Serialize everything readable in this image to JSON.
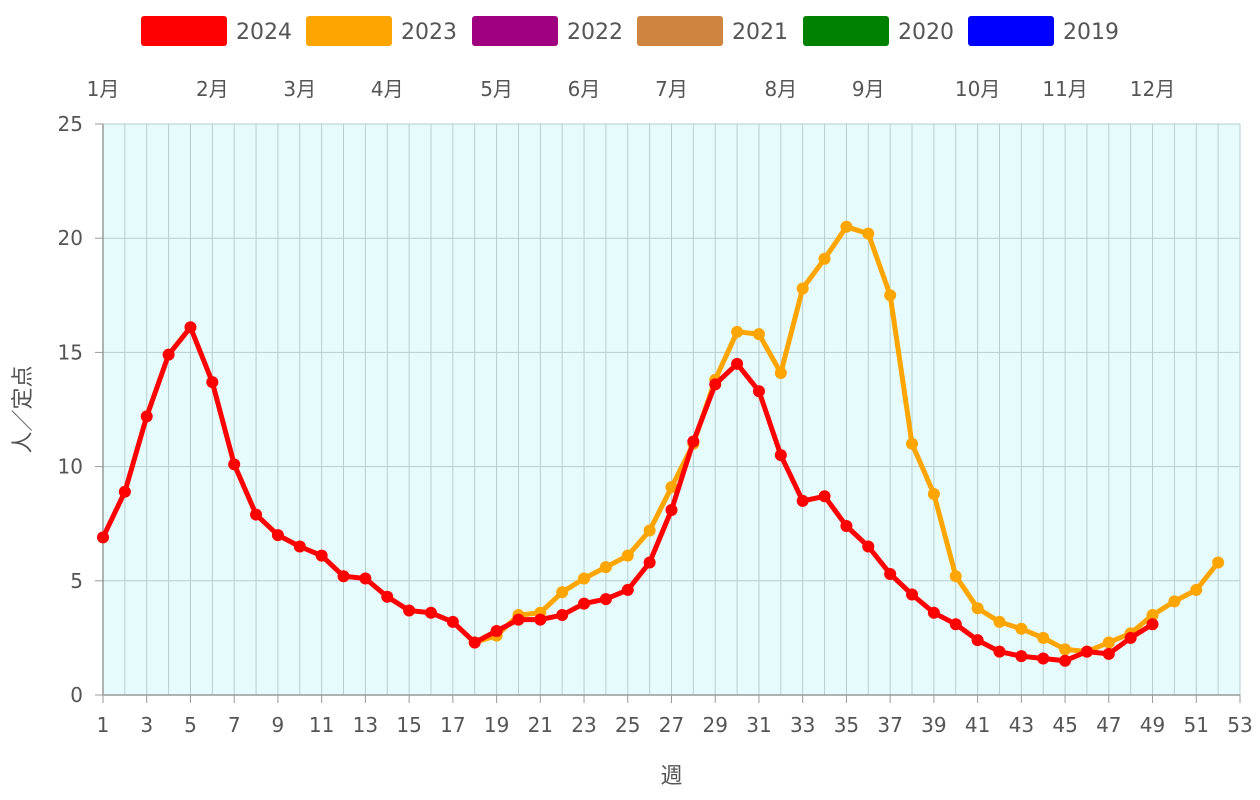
{
  "chart_data": {
    "type": "line",
    "xlabel": "週",
    "ylabel": "人／定点",
    "xlim": [
      1,
      53
    ],
    "ylim": [
      0,
      25
    ],
    "x_ticks": [
      1,
      3,
      5,
      7,
      9,
      11,
      13,
      15,
      17,
      19,
      21,
      23,
      25,
      27,
      29,
      31,
      33,
      35,
      37,
      39,
      41,
      43,
      45,
      47,
      49,
      51,
      53
    ],
    "y_ticks": [
      0,
      5,
      10,
      15,
      20,
      25
    ],
    "plot_background": "#e6fcfc",
    "grid": true,
    "legend_position": "top",
    "months": [
      {
        "label": "1月",
        "week": 1
      },
      {
        "label": "2月",
        "week": 6
      },
      {
        "label": "3月",
        "week": 10
      },
      {
        "label": "4月",
        "week": 14
      },
      {
        "label": "5月",
        "week": 19
      },
      {
        "label": "6月",
        "week": 23
      },
      {
        "label": "7月",
        "week": 27
      },
      {
        "label": "8月",
        "week": 32
      },
      {
        "label": "9月",
        "week": 36
      },
      {
        "label": "10月",
        "week": 41
      },
      {
        "label": "11月",
        "week": 45
      },
      {
        "label": "12月",
        "week": 49
      }
    ],
    "series": [
      {
        "name": "2024",
        "color": "#ff0000",
        "visible": true,
        "x": [
          1,
          2,
          3,
          4,
          5,
          6,
          7,
          8,
          9,
          10,
          11,
          12,
          13,
          14,
          15,
          16,
          17,
          18,
          19,
          20,
          21,
          22,
          23,
          24,
          25,
          26,
          27,
          28,
          29,
          30,
          31,
          32,
          33,
          34,
          35,
          36,
          37,
          38,
          39,
          40,
          41,
          42,
          43,
          44,
          45,
          46,
          47,
          48,
          49
        ],
        "values": [
          6.9,
          8.9,
          12.2,
          14.9,
          16.1,
          13.7,
          10.1,
          7.9,
          7.0,
          6.5,
          6.1,
          5.2,
          5.1,
          4.3,
          3.7,
          3.6,
          3.2,
          2.3,
          2.8,
          3.3,
          3.3,
          3.5,
          4.0,
          4.2,
          4.6,
          5.8,
          8.1,
          11.1,
          13.6,
          14.5,
          13.3,
          10.5,
          8.5,
          8.7,
          7.4,
          6.5,
          5.3,
          4.4,
          3.6,
          3.1,
          2.4,
          1.9,
          1.7,
          1.6,
          1.5,
          1.9,
          1.8,
          2.5,
          3.1
        ]
      },
      {
        "name": "2023",
        "color": "#ffa500",
        "visible": true,
        "x": [
          18,
          19,
          20,
          21,
          22,
          23,
          24,
          25,
          26,
          27,
          28,
          29,
          30,
          31,
          32,
          33,
          34,
          35,
          36,
          37,
          38,
          39,
          40,
          41,
          42,
          43,
          44,
          45,
          46,
          47,
          48,
          49,
          50,
          51,
          52
        ],
        "values": [
          2.3,
          2.6,
          3.5,
          3.6,
          4.5,
          5.1,
          5.6,
          6.1,
          7.2,
          9.1,
          11.0,
          13.8,
          15.9,
          15.8,
          14.1,
          17.8,
          19.1,
          20.5,
          20.2,
          17.5,
          11.0,
          8.8,
          5.2,
          3.8,
          3.2,
          2.9,
          2.5,
          2.0,
          1.9,
          2.3,
          2.7,
          3.5,
          4.1,
          4.6,
          5.8
        ]
      },
      {
        "name": "2022",
        "color": "#a0007f",
        "visible": false,
        "x": [],
        "values": []
      },
      {
        "name": "2021",
        "color": "#cd853f",
        "visible": false,
        "x": [],
        "values": []
      },
      {
        "name": "2020",
        "color": "#008000",
        "visible": false,
        "x": [],
        "values": []
      },
      {
        "name": "2019",
        "color": "#0000ff",
        "visible": false,
        "x": [],
        "values": []
      }
    ]
  }
}
